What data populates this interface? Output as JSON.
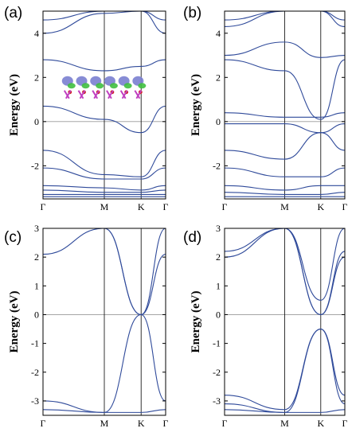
{
  "chart_data": [
    {
      "type": "line",
      "panel": "(a)",
      "ylabel": "Energy (eV)",
      "xticks": [
        "Γ",
        "M",
        "K",
        "Γ"
      ],
      "ylim": [
        -3.5,
        5
      ],
      "yticks": [
        -2,
        0,
        2,
        4
      ],
      "fermi_level": 0,
      "inset": "atomic structure with charge density isosurfaces",
      "series": [
        {
          "x": [
            0,
            0.5,
            0.8,
            1
          ],
          "values": [
            0.7,
            0.1,
            -0.5,
            0.7
          ]
        },
        {
          "x": [
            0,
            0.5,
            0.8,
            1
          ],
          "values": [
            2.8,
            2.3,
            2.5,
            2.8
          ]
        },
        {
          "x": [
            0,
            0.5,
            0.8,
            1
          ],
          "values": [
            4.0,
            4.9,
            5.0,
            4.0
          ]
        },
        {
          "x": [
            0,
            0.5,
            0.8,
            1
          ],
          "values": [
            4.6,
            5.0,
            5.0,
            4.6
          ]
        },
        {
          "x": [
            0,
            0.5,
            0.8,
            1
          ],
          "values": [
            -1.3,
            -2.4,
            -2.5,
            -1.3
          ]
        },
        {
          "x": [
            0,
            0.5,
            0.8,
            1
          ],
          "values": [
            -2.1,
            -2.6,
            -2.6,
            -2.1
          ]
        },
        {
          "x": [
            0,
            0.5,
            0.8,
            1
          ],
          "values": [
            -2.9,
            -3.0,
            -3.1,
            -2.9
          ]
        },
        {
          "x": [
            0,
            0.5,
            0.8,
            1
          ],
          "values": [
            -3.1,
            -3.2,
            -3.2,
            -3.1
          ]
        },
        {
          "x": [
            0,
            0.5,
            0.8,
            1
          ],
          "values": [
            -3.3,
            -3.3,
            -3.3,
            -3.3
          ]
        },
        {
          "x": [
            0,
            0.5,
            0.8,
            1
          ],
          "values": [
            -3.4,
            -3.4,
            -3.4,
            -3.4
          ]
        }
      ]
    },
    {
      "type": "line",
      "panel": "(b)",
      "ylabel": "Energy (eV)",
      "xticks": [
        "Γ",
        "M",
        "K",
        "Γ"
      ],
      "ylim": [
        -3.5,
        5
      ],
      "yticks": [
        -2,
        0,
        2,
        4
      ],
      "fermi_level": 0,
      "series": [
        {
          "x": [
            0,
            0.5,
            0.8,
            1
          ],
          "values": [
            0.4,
            0.2,
            0.2,
            0.4
          ]
        },
        {
          "x": [
            0,
            0.5,
            0.8,
            1
          ],
          "values": [
            -0.1,
            -0.1,
            -0.5,
            -0.1
          ]
        },
        {
          "x": [
            0,
            0.5,
            0.8,
            1
          ],
          "values": [
            2.8,
            2.3,
            0.1,
            2.8
          ]
        },
        {
          "x": [
            0,
            0.5,
            0.8,
            1
          ],
          "values": [
            3.0,
            3.6,
            2.9,
            3.0
          ]
        },
        {
          "x": [
            0,
            0.5,
            0.8,
            1
          ],
          "values": [
            4.3,
            5.0,
            5.0,
            4.3
          ]
        },
        {
          "x": [
            0,
            0.5,
            0.8,
            1
          ],
          "values": [
            4.6,
            5.0,
            5.0,
            4.6
          ]
        },
        {
          "x": [
            0,
            0.5,
            0.8,
            1
          ],
          "values": [
            -1.3,
            -1.7,
            -0.5,
            -1.3
          ]
        },
        {
          "x": [
            0,
            0.5,
            0.8,
            1
          ],
          "values": [
            -2.1,
            -2.5,
            -2.5,
            -2.1
          ]
        },
        {
          "x": [
            0,
            0.5,
            0.8,
            1
          ],
          "values": [
            -2.9,
            -3.1,
            -2.9,
            -2.9
          ]
        },
        {
          "x": [
            0,
            0.5,
            0.8,
            1
          ],
          "values": [
            -3.2,
            -3.3,
            -3.3,
            -3.2
          ]
        },
        {
          "x": [
            0,
            0.5,
            0.8,
            1
          ],
          "values": [
            -3.4,
            -3.4,
            -3.4,
            -3.4
          ]
        }
      ]
    },
    {
      "type": "line",
      "panel": "(c)",
      "ylabel": "Energy (eV)",
      "xticks": [
        "Γ",
        "M",
        "K",
        "Γ"
      ],
      "ylim": [
        -3.5,
        3
      ],
      "yticks": [
        -3,
        -2,
        -1,
        0,
        1,
        2,
        3
      ],
      "fermi_level": 0,
      "series": [
        {
          "x": [
            0,
            0.5,
            0.8,
            1
          ],
          "values": [
            3.0,
            3.0,
            0.0,
            3.0
          ]
        },
        {
          "x": [
            0,
            0.5,
            0.8,
            1
          ],
          "values": [
            2.1,
            3.0,
            0.0,
            2.1
          ]
        },
        {
          "x": [
            0,
            0.5,
            0.8,
            1
          ],
          "values": [
            -3.0,
            -3.4,
            0.0,
            -3.0
          ]
        },
        {
          "x": [
            0,
            0.5,
            0.8,
            1
          ],
          "values": [
            -3.3,
            -3.4,
            -3.4,
            -3.3
          ]
        }
      ]
    },
    {
      "type": "line",
      "panel": "(d)",
      "ylabel": "Energy (eV)",
      "xticks": [
        "Γ",
        "M",
        "K",
        "Γ"
      ],
      "ylim": [
        -3.5,
        3
      ],
      "yticks": [
        -3,
        -2,
        -1,
        0,
        1,
        2,
        3
      ],
      "fermi_level": 0,
      "series": [
        {
          "x": [
            0,
            0.5,
            0.8,
            1
          ],
          "values": [
            3.0,
            3.0,
            0.5,
            3.0
          ]
        },
        {
          "x": [
            0,
            0.5,
            0.8,
            1
          ],
          "values": [
            2.2,
            3.0,
            0.0,
            2.2
          ]
        },
        {
          "x": [
            0,
            0.5,
            0.8,
            1
          ],
          "values": [
            2.0,
            3.0,
            0.0,
            2.0
          ]
        },
        {
          "x": [
            0,
            0.5,
            0.8,
            1
          ],
          "values": [
            -2.8,
            -3.3,
            -0.5,
            -2.8
          ]
        },
        {
          "x": [
            0,
            0.5,
            0.8,
            1
          ],
          "values": [
            -3.1,
            -3.4,
            -0.5,
            -3.1
          ]
        },
        {
          "x": [
            0,
            0.5,
            0.8,
            1
          ],
          "values": [
            -3.3,
            -3.4,
            -3.4,
            -3.3
          ]
        }
      ]
    }
  ]
}
